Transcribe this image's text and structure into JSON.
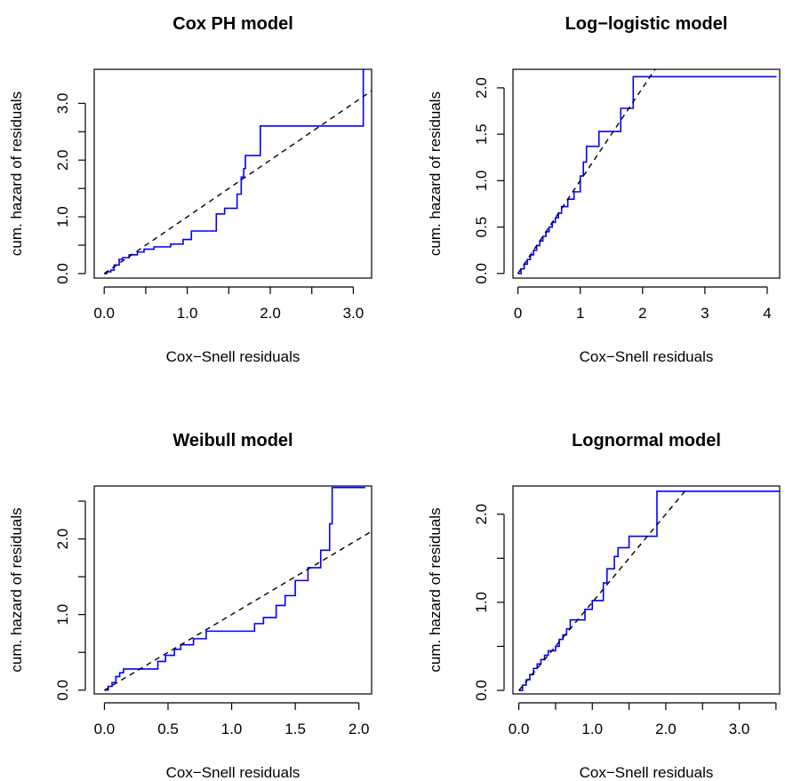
{
  "chart_data": [
    {
      "type": "line",
      "title": "Cox PH model",
      "xlabel": "Cox−Snell residuals",
      "ylabel": "cum. hazard of residuals",
      "xlim": [
        -0.12,
        3.22
      ],
      "ylim": [
        -0.08,
        3.6
      ],
      "xticks": [
        0.0,
        0.5,
        1.0,
        1.5,
        2.0,
        2.5,
        3.0
      ],
      "xtick_labels": [
        "0.0",
        "",
        "1.0",
        "",
        "2.0",
        "",
        "3.0"
      ],
      "yticks": [
        0.0,
        0.5,
        1.0,
        1.5,
        2.0,
        2.5,
        3.0
      ],
      "ytick_labels": [
        "0.0",
        "",
        "1.0",
        "",
        "2.0",
        "",
        "3.0"
      ],
      "series": [
        {
          "style": "step",
          "color": "#0000ff",
          "x": [
            0,
            0.03,
            0.08,
            0.12,
            0.18,
            0.22,
            0.3,
            0.4,
            0.48,
            0.6,
            0.8,
            0.95,
            1.05,
            1.35,
            1.45,
            1.6,
            1.65,
            1.68,
            1.7,
            1.88,
            3.12,
            3.12,
            3.14
          ],
          "y": [
            0,
            0.03,
            0.06,
            0.15,
            0.25,
            0.28,
            0.33,
            0.38,
            0.43,
            0.47,
            0.52,
            0.6,
            0.75,
            1.05,
            1.15,
            1.4,
            1.7,
            1.85,
            2.08,
            2.6,
            2.6,
            3.6,
            3.6
          ]
        },
        {
          "style": "reference",
          "dash": true,
          "color": "#000000",
          "x": [
            0,
            3.22
          ],
          "y": [
            0,
            3.22
          ]
        }
      ]
    },
    {
      "type": "line",
      "title": "Log−logistic model",
      "xlabel": "Cox−Snell residuals",
      "ylabel": "cum. hazard of residuals",
      "xlim": [
        -0.08,
        4.2
      ],
      "ylim": [
        -0.05,
        2.2
      ],
      "xticks": [
        0,
        1,
        2,
        3,
        4
      ],
      "xtick_labels": [
        "0",
        "1",
        "2",
        "3",
        "4"
      ],
      "yticks": [
        0.0,
        0.5,
        1.0,
        1.5,
        2.0
      ],
      "ytick_labels": [
        "0.0",
        "0.5",
        "1.0",
        "1.5",
        "2.0"
      ],
      "series": [
        {
          "style": "step",
          "color": "#0000ff",
          "x": [
            0,
            0.05,
            0.1,
            0.15,
            0.2,
            0.25,
            0.3,
            0.35,
            0.4,
            0.45,
            0.5,
            0.55,
            0.6,
            0.65,
            0.7,
            0.8,
            0.9,
            1.0,
            1.05,
            1.1,
            1.3,
            1.65,
            1.85,
            4.15
          ],
          "y": [
            0,
            0.05,
            0.1,
            0.15,
            0.2,
            0.25,
            0.3,
            0.35,
            0.4,
            0.45,
            0.5,
            0.55,
            0.6,
            0.65,
            0.72,
            0.8,
            0.88,
            1.05,
            1.2,
            1.37,
            1.53,
            1.78,
            2.12,
            2.12
          ]
        },
        {
          "style": "reference",
          "dash": true,
          "color": "#000000",
          "x": [
            0,
            2.22
          ],
          "y": [
            0,
            2.22
          ]
        }
      ]
    },
    {
      "type": "line",
      "title": "Weibull model",
      "xlabel": "Cox−Snell residuals",
      "ylabel": "cum. hazard of residuals",
      "xlim": [
        -0.08,
        2.1
      ],
      "ylim": [
        -0.05,
        2.7
      ],
      "xticks": [
        0.0,
        0.5,
        1.0,
        1.5,
        2.0
      ],
      "xtick_labels": [
        "0.0",
        "0.5",
        "1.0",
        "1.5",
        "2.0"
      ],
      "yticks": [
        0.0,
        0.5,
        1.0,
        1.5,
        2.0,
        2.5
      ],
      "ytick_labels": [
        "0.0",
        "",
        "1.0",
        "",
        "2.0",
        ""
      ],
      "series": [
        {
          "style": "step",
          "color": "#0000ff",
          "x": [
            0,
            0.03,
            0.06,
            0.09,
            0.12,
            0.15,
            0.42,
            0.48,
            0.55,
            0.6,
            0.7,
            0.8,
            1.18,
            1.25,
            1.35,
            1.42,
            1.5,
            1.6,
            1.7,
            1.77,
            1.79,
            2.05
          ],
          "y": [
            0,
            0.05,
            0.1,
            0.18,
            0.23,
            0.28,
            0.38,
            0.46,
            0.54,
            0.6,
            0.68,
            0.78,
            0.88,
            0.96,
            1.12,
            1.25,
            1.45,
            1.62,
            1.85,
            2.2,
            2.68,
            2.68
          ]
        },
        {
          "style": "reference",
          "dash": true,
          "color": "#000000",
          "x": [
            0,
            2.1
          ],
          "y": [
            0,
            2.1
          ]
        }
      ]
    },
    {
      "type": "line",
      "title": "Lognormal model",
      "xlabel": "Cox−Snell residuals",
      "ylabel": "cum. hazard of residuals",
      "xlim": [
        -0.08,
        3.55
      ],
      "ylim": [
        -0.04,
        2.32
      ],
      "xticks": [
        0.0,
        0.5,
        1.0,
        1.5,
        2.0,
        2.5,
        3.0,
        3.5
      ],
      "xtick_labels": [
        "0.0",
        "",
        "1.0",
        "",
        "2.0",
        "",
        "3.0",
        ""
      ],
      "yticks": [
        0.0,
        0.5,
        1.0,
        1.5,
        2.0
      ],
      "ytick_labels": [
        "0.0",
        "",
        "1.0",
        "",
        "2.0"
      ],
      "series": [
        {
          "style": "step",
          "color": "#0000ff",
          "x": [
            0,
            0.05,
            0.1,
            0.15,
            0.2,
            0.25,
            0.3,
            0.35,
            0.4,
            0.5,
            0.55,
            0.6,
            0.65,
            0.7,
            0.9,
            1.0,
            1.15,
            1.2,
            1.3,
            1.35,
            1.5,
            1.88,
            3.55
          ],
          "y": [
            0,
            0.06,
            0.12,
            0.18,
            0.25,
            0.3,
            0.35,
            0.4,
            0.45,
            0.5,
            0.58,
            0.63,
            0.7,
            0.8,
            0.92,
            1.02,
            1.22,
            1.38,
            1.52,
            1.62,
            1.75,
            2.26,
            2.26
          ]
        },
        {
          "style": "reference",
          "dash": true,
          "color": "#000000",
          "x": [
            0,
            2.3
          ],
          "y": [
            0,
            2.3
          ]
        }
      ]
    }
  ]
}
